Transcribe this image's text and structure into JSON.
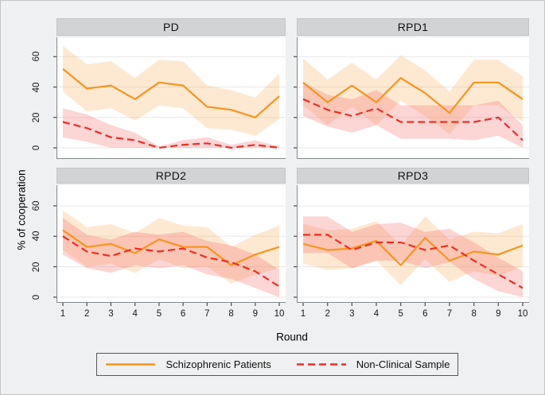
{
  "figure": {
    "ylabel": "% of cooperation",
    "xlabel": "Round"
  },
  "legend": {
    "items": [
      {
        "label": "Schizophrenic Patients",
        "style": "solid"
      },
      {
        "label": "Non-Clinical Sample",
        "style": "dashed"
      }
    ]
  },
  "colors": {
    "schizophrenic_line": "#f8941d",
    "nonclinical_line": "#ee2e24",
    "schizophrenic_band": "rgba(249,166,77,0.25)",
    "nonclinical_band": "rgba(244,105,105,0.28)",
    "figure_bg": "#eff0f1",
    "header_bg": "#d2d3d4",
    "plot_bg": "#ffffff",
    "grid": "#e7e7e7",
    "axis": "#85888a",
    "tick": "#4a4a4a"
  },
  "chart_data": {
    "type": "line",
    "x": [
      1,
      2,
      3,
      4,
      5,
      6,
      7,
      8,
      9,
      10
    ],
    "x_ticks": [
      1,
      2,
      3,
      4,
      5,
      6,
      7,
      8,
      9,
      10
    ],
    "y_ticks": [
      0,
      20,
      40,
      60
    ],
    "xlabel": "Round",
    "ylabel": "% of cooperation",
    "ylim": [
      -7,
      74
    ],
    "grid": true,
    "legend_position": "bottom",
    "panels": [
      {
        "title": "PD",
        "series": [
          {
            "name": "Schizophrenic Patients",
            "values": [
              52,
              39,
              41,
              32,
              43,
              41,
              27,
              25,
              20,
              34
            ],
            "ci_upper": [
              67,
              55,
              57,
              46,
              58,
              57,
              41,
              38,
              33,
              49
            ],
            "ci_lower": [
              37,
              24,
              26,
              18,
              28,
              26,
              13,
              12,
              8,
              19
            ]
          },
          {
            "name": "Non-Clinical Sample",
            "values": [
              17,
              13,
              7,
              5,
              0,
              2,
              3,
              0,
              2,
              0
            ],
            "ci_upper": [
              26,
              22,
              15,
              10,
              1,
              5,
              7,
              2,
              5,
              1
            ],
            "ci_lower": [
              7,
              4,
              0,
              0,
              0,
              0,
              0,
              0,
              0,
              0
            ]
          }
        ]
      },
      {
        "title": "RPD1",
        "series": [
          {
            "name": "Schizophrenic Patients",
            "values": [
              43,
              30,
              41,
              30,
              46,
              36,
              23,
              43,
              43,
              32
            ],
            "ci_upper": [
              59,
              45,
              56,
              45,
              61,
              51,
              37,
              58,
              58,
              47
            ],
            "ci_lower": [
              28,
              15,
              27,
              15,
              31,
              21,
              9,
              28,
              28,
              17
            ]
          },
          {
            "name": "Non-Clinical Sample",
            "values": [
              32,
              25,
              21,
              26,
              17,
              17,
              17,
              17,
              20,
              5
            ],
            "ci_upper": [
              43,
              35,
              32,
              38,
              28,
              28,
              28,
              28,
              31,
              15
            ],
            "ci_lower": [
              21,
              14,
              10,
              15,
              6,
              6,
              6,
              5,
              8,
              0
            ]
          }
        ]
      },
      {
        "title": "RPD2",
        "series": [
          {
            "name": "Schizophrenic Patients",
            "values": [
              44,
              33,
              35,
              29,
              38,
              33,
              33,
              21,
              28,
              33
            ],
            "ci_upper": [
              57,
              46,
              48,
              42,
              52,
              47,
              46,
              33,
              41,
              47
            ],
            "ci_lower": [
              31,
              20,
              22,
              16,
              25,
              19,
              20,
              9,
              15,
              19
            ]
          },
          {
            "name": "Non-Clinical Sample",
            "values": [
              40,
              30,
              27,
              32,
              30,
              32,
              26,
              23,
              17,
              7
            ],
            "ci_upper": [
              52,
              41,
              38,
              43,
              41,
              43,
              37,
              34,
              28,
              18
            ],
            "ci_lower": [
              28,
              19,
              16,
              21,
              19,
              21,
              15,
              12,
              6,
              0
            ]
          }
        ]
      },
      {
        "title": "RPD3",
        "series": [
          {
            "name": "Schizophrenic Patients",
            "values": [
              35,
              31,
              32,
              37,
              21,
              39,
              24,
              30,
              28,
              34
            ],
            "ci_upper": [
              48,
              44,
              45,
              50,
              34,
              53,
              38,
              43,
              42,
              48
            ],
            "ci_lower": [
              22,
              18,
              19,
              24,
              8,
              25,
              10,
              17,
              14,
              20
            ]
          },
          {
            "name": "Non-Clinical Sample",
            "values": [
              41,
              41,
              31,
              36,
              36,
              31,
              34,
              24,
              15,
              6
            ],
            "ci_upper": [
              53,
              53,
              43,
              48,
              49,
              43,
              45,
              36,
              26,
              17
            ],
            "ci_lower": [
              29,
              29,
              19,
              24,
              24,
              19,
              23,
              12,
              4,
              0
            ]
          }
        ]
      }
    ]
  }
}
